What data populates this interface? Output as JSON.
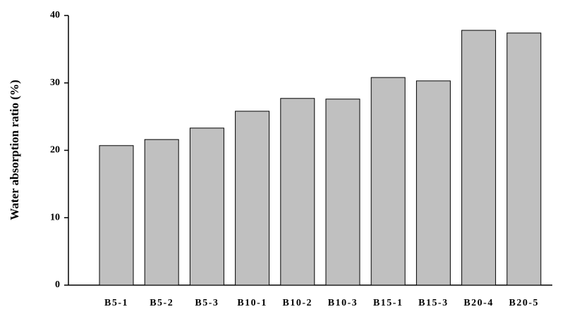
{
  "chart_data": {
    "type": "bar",
    "y_label": "Water absorption ratio (%)",
    "categories": [
      "B5-1",
      "B5-2",
      "B5-3",
      "B10-1",
      "B10-2",
      "B10-3",
      "B15-1",
      "B15-3",
      "B20-4",
      "B20-5"
    ],
    "values": [
      20.7,
      21.6,
      23.3,
      25.8,
      27.7,
      27.6,
      30.8,
      30.3,
      37.8,
      37.4
    ],
    "color": "#c0c0c0",
    "ylim": [
      0,
      40
    ],
    "yticks": [
      0,
      10,
      20,
      30,
      40
    ],
    "grid": false
  }
}
